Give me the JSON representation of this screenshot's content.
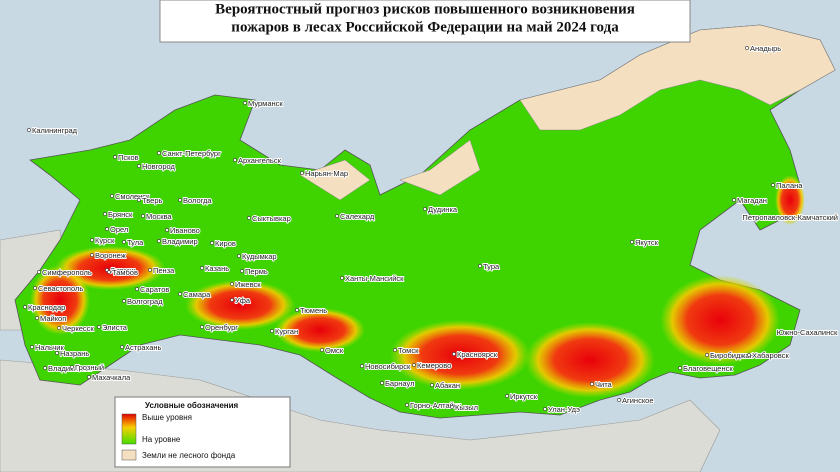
{
  "title": {
    "line1": "Вероятностный прогноз рисков повышенного возникновения",
    "line2": "пожаров в лесах Российской Федерации на май 2024 года"
  },
  "legend": {
    "title": "Условные обозначения",
    "items": [
      "Выше уровня",
      "На уровне",
      "Земли не лесного фонда"
    ]
  },
  "cities": [
    "Мурманск",
    "Калининград",
    "Санкт-Петербург",
    "Псков",
    "Новгород",
    "Архангельск",
    "Нарьян-Мар",
    "Смоленск",
    "Тверь",
    "Вологда",
    "Брянск",
    "Москва",
    "Иваново",
    "Сыктывкар",
    "Салехард",
    "Дудинка",
    "Орел",
    "Курск",
    "Тула",
    "Владимир",
    "Киров",
    "Воронеж",
    "Липецк",
    "Кудымкар",
    "Пермь",
    "Казань",
    "Тамбов",
    "Пенза",
    "Симферополь",
    "Саратов",
    "Самара",
    "Ижевск",
    "Ханты-Мансийск",
    "Тура",
    "Якутск",
    "Магадан",
    "Петропавловск-Камчатский",
    "Палана",
    "Анадырь",
    "Севастополь",
    "Уфа",
    "Тюмень",
    "Волгоград",
    "Краснодар",
    "Майкоп",
    "Черкесск",
    "Элиста",
    "Оренбург",
    "Курган",
    "Омск",
    "Нальчик",
    "Назрань",
    "Астрахань",
    "Томск",
    "Кемерово",
    "Красноярск",
    "Новосибирск",
    "Владикавказ",
    "Грозный",
    "Махачкала",
    "Барнаул",
    "Абакан",
    "Горно-Алтайск",
    "Кызыл",
    "Иркутск",
    "Улан-Удэ",
    "Чита",
    "Агинское",
    "Благовещенск",
    "Биробиджан",
    "Хабаровск",
    "Южно-Сахалинск"
  ]
}
